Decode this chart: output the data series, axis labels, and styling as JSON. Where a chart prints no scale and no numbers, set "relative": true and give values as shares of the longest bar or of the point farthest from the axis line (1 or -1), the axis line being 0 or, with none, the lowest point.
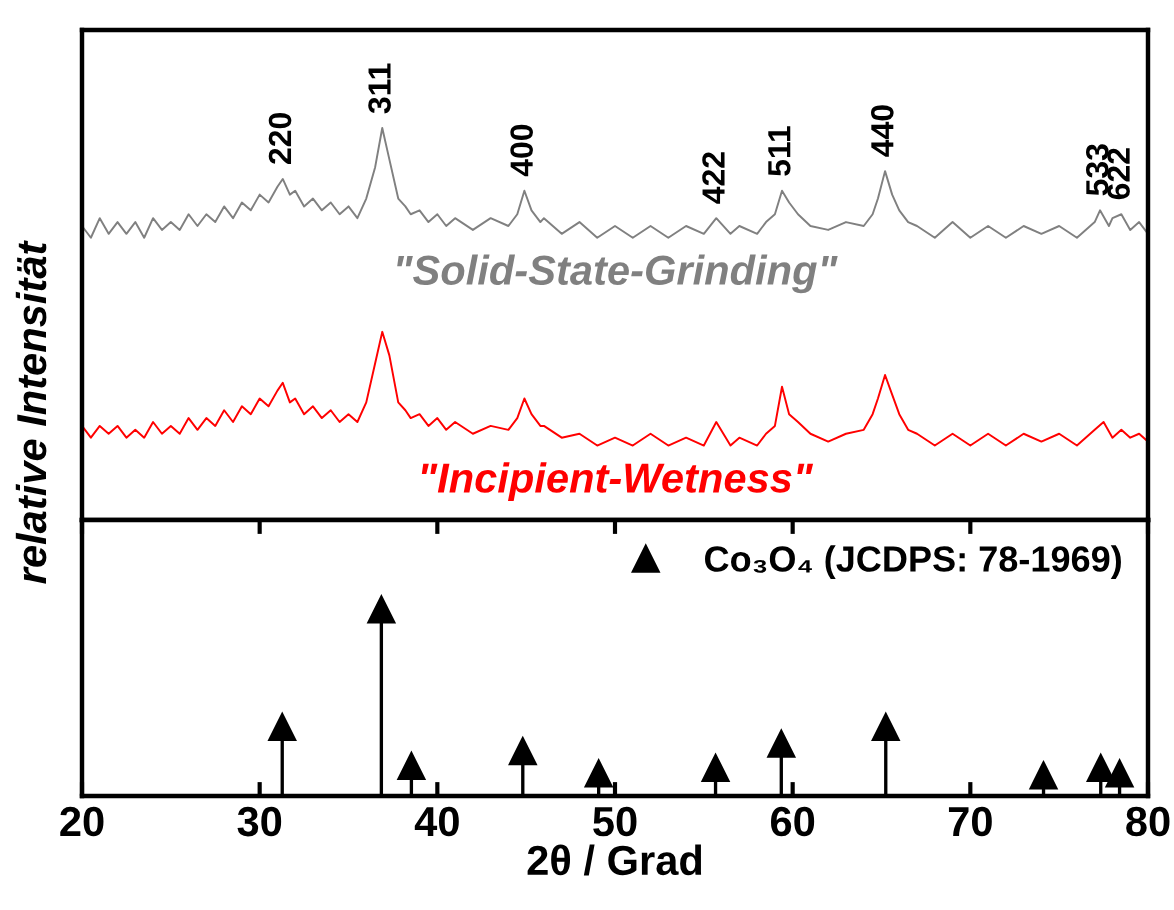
{
  "chart_data": [
    {
      "type": "line",
      "relative": true,
      "ylabel": "relative Intensität",
      "xlim": [
        20,
        80
      ],
      "legend": false,
      "grid": false,
      "series": [
        {
          "name": "\"Solid-State-Grinding\"",
          "color": "#808080",
          "x": [
            20,
            20.5,
            21,
            21.5,
            22,
            22.5,
            23,
            23.5,
            24,
            24.5,
            25,
            25.5,
            26,
            26.5,
            27,
            27.5,
            28,
            28.5,
            29,
            29.5,
            30,
            30.5,
            31,
            31.3,
            31.7,
            32,
            32.5,
            33,
            33.5,
            34,
            34.5,
            35,
            35.5,
            36,
            36.5,
            36.9,
            37.3,
            37.8,
            38.2,
            38.5,
            39,
            39.5,
            40,
            40.5,
            41,
            42,
            43,
            44,
            44.5,
            44.9,
            45.3,
            45.8,
            46,
            47,
            48,
            49,
            50,
            51,
            52,
            53,
            54,
            55,
            55.7,
            56.5,
            57,
            58,
            58.5,
            59,
            59.4,
            59.8,
            60.3,
            61,
            62,
            63,
            64,
            64.5,
            64.8,
            65.2,
            65.6,
            66,
            66.5,
            67,
            68,
            69,
            70,
            71,
            72,
            73,
            74,
            75,
            76,
            77,
            77.3,
            77.8,
            78,
            78.5,
            79,
            79.5,
            80
          ],
          "values": [
            0.75,
            0.72,
            0.77,
            0.73,
            0.76,
            0.73,
            0.76,
            0.72,
            0.77,
            0.74,
            0.76,
            0.74,
            0.78,
            0.75,
            0.78,
            0.76,
            0.8,
            0.77,
            0.81,
            0.79,
            0.83,
            0.81,
            0.85,
            0.87,
            0.83,
            0.84,
            0.8,
            0.82,
            0.79,
            0.81,
            0.78,
            0.8,
            0.77,
            0.82,
            0.9,
            1.0,
            0.92,
            0.82,
            0.8,
            0.78,
            0.79,
            0.76,
            0.78,
            0.75,
            0.77,
            0.74,
            0.77,
            0.75,
            0.78,
            0.84,
            0.79,
            0.76,
            0.77,
            0.73,
            0.76,
            0.72,
            0.75,
            0.72,
            0.75,
            0.72,
            0.75,
            0.73,
            0.77,
            0.73,
            0.75,
            0.73,
            0.76,
            0.78,
            0.84,
            0.81,
            0.78,
            0.75,
            0.74,
            0.76,
            0.75,
            0.78,
            0.82,
            0.89,
            0.83,
            0.79,
            0.76,
            0.75,
            0.72,
            0.76,
            0.72,
            0.75,
            0.72,
            0.75,
            0.73,
            0.75,
            0.72,
            0.76,
            0.79,
            0.75,
            0.77,
            0.78,
            0.74,
            0.76,
            0.73
          ]
        },
        {
          "name": "\"Incipient-Wetness\"",
          "color": "#ff0000",
          "x": [
            20,
            20.5,
            21,
            21.5,
            22,
            22.5,
            23,
            23.5,
            24,
            24.5,
            25,
            25.5,
            26,
            26.5,
            27,
            27.5,
            28,
            28.5,
            29,
            29.5,
            30,
            30.5,
            31,
            31.3,
            31.7,
            32,
            32.5,
            33,
            33.5,
            34,
            34.5,
            35,
            35.5,
            36,
            36.5,
            36.9,
            37.3,
            37.8,
            38.2,
            38.5,
            39,
            39.5,
            40,
            40.5,
            41,
            42,
            43,
            44,
            44.5,
            44.9,
            45.3,
            45.8,
            46,
            47,
            48,
            49,
            50,
            51,
            52,
            53,
            54,
            55,
            55.7,
            56.5,
            57,
            58,
            58.5,
            59,
            59.4,
            59.8,
            60.3,
            61,
            62,
            63,
            64,
            64.5,
            64.8,
            65.2,
            65.6,
            66,
            66.5,
            67,
            68,
            69,
            70,
            71,
            72,
            73,
            74,
            75,
            76,
            77,
            77.5,
            78,
            78.5,
            79,
            79.5,
            80
          ],
          "values": [
            0.24,
            0.21,
            0.24,
            0.22,
            0.24,
            0.21,
            0.23,
            0.21,
            0.25,
            0.22,
            0.24,
            0.22,
            0.26,
            0.23,
            0.26,
            0.24,
            0.28,
            0.25,
            0.29,
            0.27,
            0.31,
            0.29,
            0.33,
            0.35,
            0.3,
            0.31,
            0.27,
            0.29,
            0.26,
            0.28,
            0.25,
            0.27,
            0.25,
            0.3,
            0.4,
            0.48,
            0.42,
            0.3,
            0.28,
            0.26,
            0.27,
            0.24,
            0.26,
            0.23,
            0.25,
            0.22,
            0.24,
            0.23,
            0.26,
            0.31,
            0.27,
            0.24,
            0.24,
            0.21,
            0.22,
            0.19,
            0.21,
            0.19,
            0.22,
            0.19,
            0.21,
            0.19,
            0.25,
            0.19,
            0.21,
            0.19,
            0.22,
            0.24,
            0.34,
            0.27,
            0.25,
            0.22,
            0.2,
            0.22,
            0.23,
            0.27,
            0.31,
            0.37,
            0.32,
            0.27,
            0.23,
            0.22,
            0.19,
            0.22,
            0.19,
            0.22,
            0.19,
            0.22,
            0.2,
            0.22,
            0.19,
            0.23,
            0.25,
            0.21,
            0.23,
            0.21,
            0.22,
            0.2
          ]
        }
      ],
      "annotations": [
        {
          "text": "220",
          "x": 31.3,
          "y": 0.87
        },
        {
          "text": "311",
          "x": 36.9,
          "y": 1.0
        },
        {
          "text": "400",
          "x": 44.9,
          "y": 0.84
        },
        {
          "text": "422",
          "x": 55.7,
          "y": 0.77
        },
        {
          "text": "511",
          "x": 59.4,
          "y": 0.84
        },
        {
          "text": "440",
          "x": 65.2,
          "y": 0.89
        },
        {
          "text": "533",
          "x": 77.3,
          "y": 0.79
        },
        {
          "text": "622",
          "x": 78.5,
          "y": 0.78
        }
      ]
    },
    {
      "type": "lollipop",
      "relative": true,
      "xlabel": "2θ / Grad",
      "xlim": [
        20,
        80
      ],
      "xticks": [
        20,
        30,
        40,
        50,
        60,
        70,
        80
      ],
      "marker": "triangle",
      "legend": "top right",
      "grid": false,
      "series": [
        {
          "name": "Co₃O₄ (JCDPS: 78-1969)",
          "color": "#000000",
          "x": [
            31.27,
            36.85,
            38.54,
            44.81,
            49.08,
            55.66,
            59.36,
            65.24,
            74.12,
            77.34,
            78.4
          ],
          "values": [
            0.37,
            1.0,
            0.16,
            0.24,
            0.12,
            0.15,
            0.28,
            0.37,
            0.11,
            0.15,
            0.12
          ]
        }
      ]
    }
  ]
}
